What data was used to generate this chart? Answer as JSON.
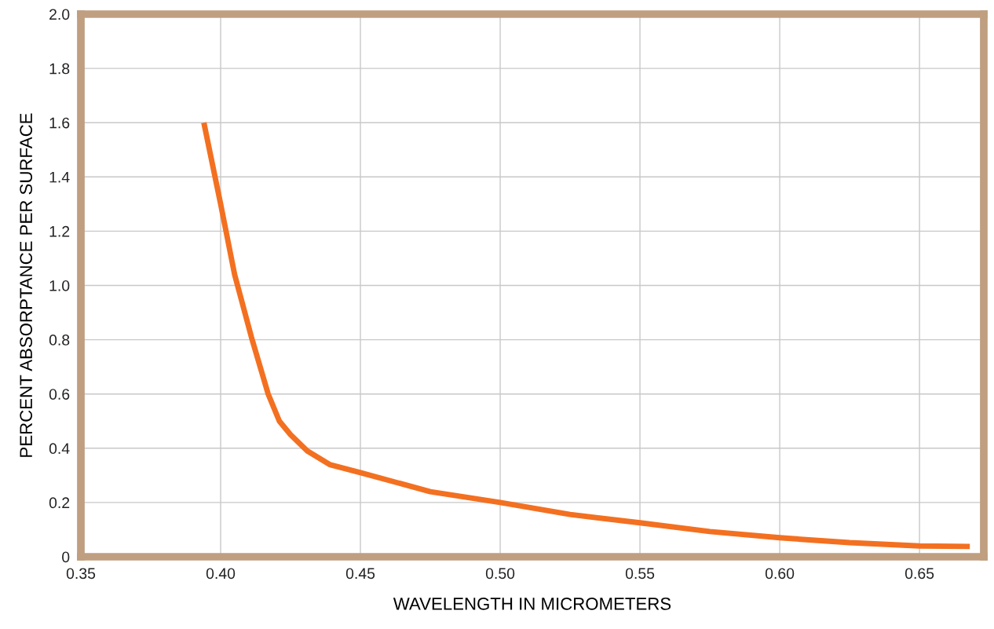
{
  "chart_data": {
    "type": "line",
    "xlabel": "WAVELENGTH IN MICROMETERS",
    "ylabel": "PERCENT ABSORPTANCE PER SURFACE",
    "x": [
      0.394,
      0.4,
      0.405,
      0.411,
      0.417,
      0.421,
      0.425,
      0.431,
      0.439,
      0.45,
      0.475,
      0.5,
      0.525,
      0.55,
      0.575,
      0.6,
      0.625,
      0.65,
      0.668
    ],
    "series": [
      {
        "color": "#f37021",
        "values": [
          1.6,
          1.3,
          1.04,
          0.81,
          0.6,
          0.5,
          0.45,
          0.39,
          0.34,
          0.31,
          0.24,
          0.2,
          0.156,
          0.125,
          0.093,
          0.07,
          0.052,
          0.04,
          0.038
        ]
      }
    ],
    "xlim": [
      0.35,
      0.673
    ],
    "xticks": [
      {
        "value": 0.35,
        "label": "0.35"
      },
      {
        "value": 0.4,
        "label": "0.40"
      },
      {
        "value": 0.45,
        "label": "0.45"
      },
      {
        "value": 0.5,
        "label": "0.50"
      },
      {
        "value": 0.55,
        "label": "0.55"
      },
      {
        "value": 0.6,
        "label": "0.60"
      },
      {
        "value": 0.65,
        "label": "0.65"
      }
    ],
    "ylim": [
      0,
      2.0
    ],
    "yticks": [
      0,
      0.2,
      0.4,
      0.6,
      0.8,
      {
        "value": 1.0,
        "label": "1.0"
      },
      1.2,
      1.4,
      1.6,
      1.8,
      {
        "value": 2.0,
        "label": "2.0"
      }
    ],
    "grid": true,
    "legend": false,
    "marker": "none",
    "line_style": "solid"
  }
}
